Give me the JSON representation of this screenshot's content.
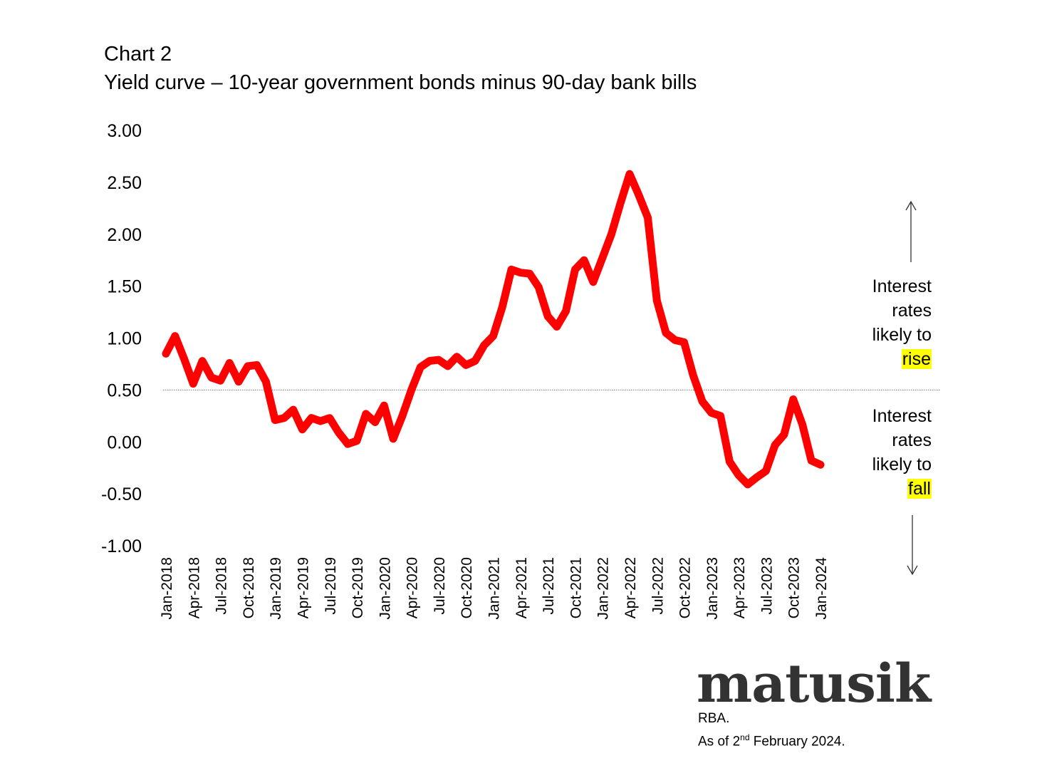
{
  "title": {
    "line1": "Chart 2",
    "line2": "Yield curve – 10-year government bonds minus 90-day bank bills"
  },
  "annotations": {
    "rise": {
      "line1": "Interest",
      "line2": "rates",
      "line3": "likely to",
      "highlight": "rise"
    },
    "fall": {
      "line1": "Interest",
      "line2": "rates",
      "line3": "likely to",
      "highlight": "fall"
    }
  },
  "logo": "matusik",
  "source": {
    "line1": "RBA.",
    "line2_prefix": "As of 2",
    "line2_sup": "nd",
    "line2_suffix": " February 2024."
  },
  "colors": {
    "series": "#ff0000",
    "highlight": "#ffff00",
    "reference_line": "#777777"
  },
  "chart_data": {
    "type": "line",
    "title": "Yield curve – 10-year government bonds minus 90-day bank bills",
    "xlabel": "",
    "ylabel": "",
    "ylim": [
      -1.0,
      3.0
    ],
    "yticks": [
      3.0,
      2.5,
      2.0,
      1.5,
      1.0,
      0.5,
      0.0,
      -0.5,
      -1.0
    ],
    "ytick_labels": [
      "3.00",
      "2.50",
      "2.00",
      "1.50",
      "1.00",
      "0.50",
      "0.00",
      "-0.50",
      "-1.00"
    ],
    "reference_line": 0.5,
    "grid": false,
    "legend": "none",
    "xtick_labels": [
      "Jan-2018",
      "Apr-2018",
      "Jul-2018",
      "Oct-2018",
      "Jan-2019",
      "Apr-2019",
      "Jul-2019",
      "Oct-2019",
      "Jan-2020",
      "Apr-2020",
      "Jul-2020",
      "Oct-2020",
      "Jan-2021",
      "Apr-2021",
      "Jul-2021",
      "Oct-2021",
      "Jan-2022",
      "Apr-2022",
      "Jul-2022",
      "Oct-2022",
      "Jan-2023",
      "Apr-2023",
      "Jul-2023",
      "Oct-2023",
      "Jan-2024"
    ],
    "x_start": "Jan-2018",
    "x_end": "Jan-2024",
    "series": [
      {
        "values": [
          0.85,
          1.02,
          0.8,
          0.56,
          0.78,
          0.62,
          0.59,
          0.76,
          0.58,
          0.73,
          0.74,
          0.58,
          0.21,
          0.23,
          0.31,
          0.12,
          0.23,
          0.2,
          0.23,
          0.09,
          -0.02,
          0.01,
          0.27,
          0.19,
          0.35,
          0.03,
          0.25,
          0.5,
          0.72,
          0.78,
          0.79,
          0.73,
          0.82,
          0.74,
          0.78,
          0.93,
          1.02,
          1.3,
          1.66,
          1.63,
          1.62,
          1.49,
          1.21,
          1.11,
          1.26,
          1.66,
          1.75,
          1.54,
          1.77,
          2.0,
          2.3,
          2.58,
          2.38,
          2.16,
          1.36,
          1.05,
          0.98,
          0.96,
          0.64,
          0.39,
          0.28,
          0.25,
          -0.19,
          -0.32,
          -0.41,
          -0.34,
          -0.28,
          -0.03,
          0.07,
          0.41,
          0.17,
          -0.18,
          -0.22
        ]
      }
    ]
  }
}
